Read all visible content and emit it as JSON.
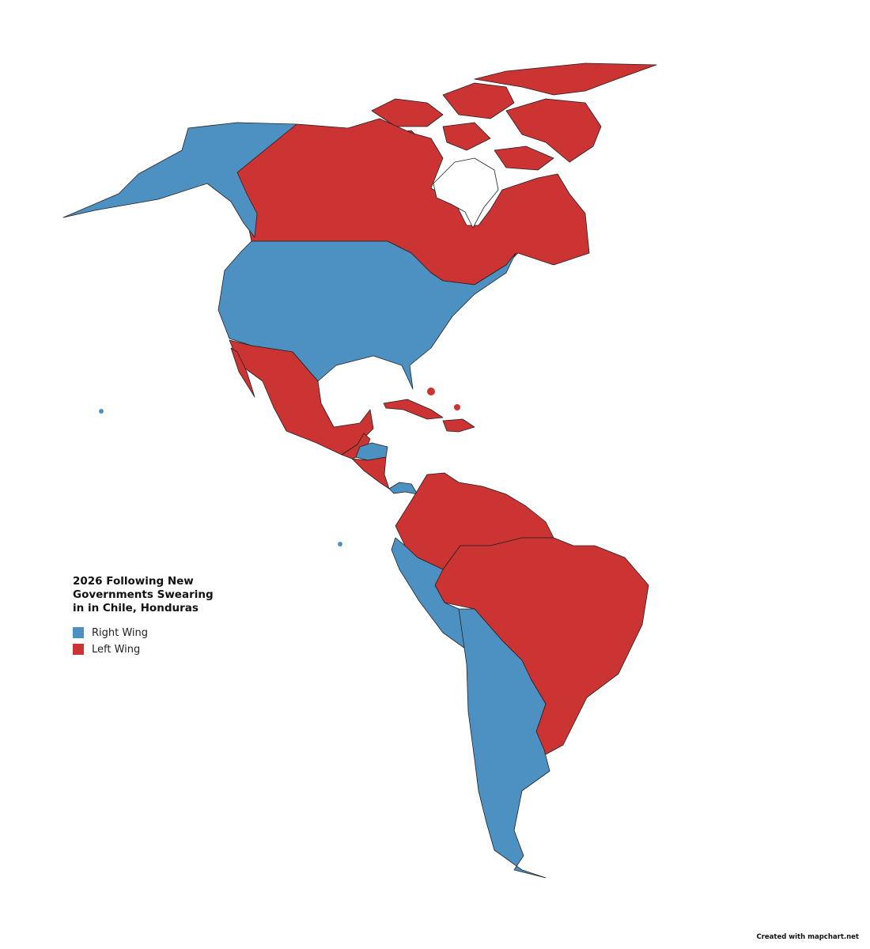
{
  "legend": {
    "title": "2026 Following New Governments Swearing in in Chile, Honduras",
    "items": [
      {
        "label": "Right Wing",
        "color": "#4d91c2"
      },
      {
        "label": "Left Wing",
        "color": "#cc3333"
      }
    ]
  },
  "credit": "Created with mapchart.net"
}
